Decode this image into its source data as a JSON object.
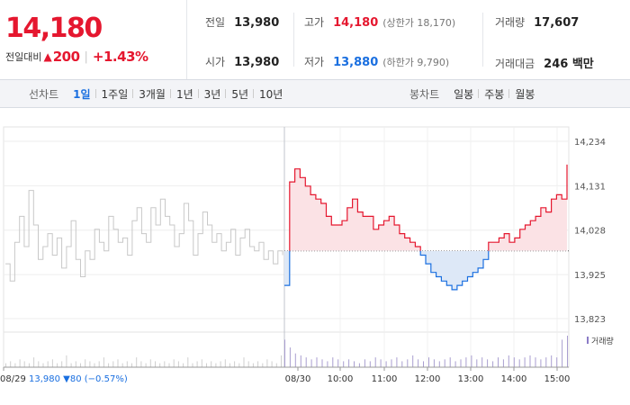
{
  "quote": {
    "price": "14,180",
    "change_label": "전일대비",
    "change_icon": "up-triangle-icon",
    "change_amount": "200",
    "change_percent": "+1.43%",
    "up_color": "#e5172f",
    "down_color": "#1a6fe0"
  },
  "stats": {
    "prev_close": {
      "label": "전일",
      "value": "13,980"
    },
    "open": {
      "label": "시가",
      "value": "13,980"
    },
    "high": {
      "label": "고가",
      "value": "14,180",
      "sub": "(상한가 18,170)"
    },
    "low": {
      "label": "저가",
      "value": "13,880",
      "sub": "(하한가 9,790)"
    },
    "volume": {
      "label": "거래량",
      "value": "17,607"
    },
    "amount": {
      "label": "거래대금",
      "value": "246 백만"
    }
  },
  "tabs": {
    "line_label": "선차트",
    "line": [
      {
        "label": "1일",
        "active": true
      },
      {
        "label": "1주일",
        "active": false
      },
      {
        "label": "3개월",
        "active": false
      },
      {
        "label": "1년",
        "active": false
      },
      {
        "label": "3년",
        "active": false
      },
      {
        "label": "5년",
        "active": false
      },
      {
        "label": "10년",
        "active": false
      }
    ],
    "candle_label": "봉차트",
    "candle": [
      {
        "label": "일봉"
      },
      {
        "label": "주봉"
      },
      {
        "label": "월봉"
      }
    ]
  },
  "chart_data": {
    "type": "line",
    "title": "",
    "ylim": [
      13800,
      14260
    ],
    "y_ticks": [
      "14,234",
      "14,131",
      "14,028",
      "13,925",
      "13,823"
    ],
    "y_tick_values": [
      14234,
      14131,
      14028,
      13925,
      13823
    ],
    "reference_line": 13980,
    "x_labels": [
      "08/29",
      "08/30",
      "10:00",
      "11:00",
      "12:00",
      "13:00",
      "14:00",
      "15:00"
    ],
    "prev_day_caption": {
      "date": "08/29",
      "close": "13,980",
      "arrow_icon": "down-triangle-icon",
      "change": "80",
      "pct": "(−0.57%)"
    },
    "volume_legend": "거래량",
    "grid": true,
    "series": [
      {
        "name": "08/29",
        "color": "#c8c8c8",
        "values": [
          13950,
          13910,
          14000,
          14060,
          13990,
          14120,
          14040,
          13960,
          13990,
          14020,
          13970,
          14010,
          13940,
          13990,
          14050,
          13960,
          13920,
          13980,
          13960,
          14030,
          14000,
          13980,
          14060,
          14030,
          14000,
          14010,
          13970,
          14050,
          14080,
          14020,
          14000,
          14080,
          14040,
          14100,
          14060,
          14040,
          13990,
          14020,
          14090,
          14050,
          13970,
          14020,
          14070,
          14040,
          14000,
          14020,
          13980,
          14000,
          14030,
          13970,
          14010,
          14030,
          13990,
          13980,
          14000,
          13960,
          13980,
          13950,
          13980,
          13970
        ]
      },
      {
        "name": "08/30",
        "color": "#e5172f",
        "values": [
          13900,
          14140,
          14170,
          14150,
          14130,
          14110,
          14100,
          14090,
          14060,
          14040,
          14040,
          14050,
          14080,
          14100,
          14070,
          14060,
          14060,
          14030,
          14040,
          14050,
          14060,
          14040,
          14020,
          14010,
          14000,
          13990,
          13970,
          13950,
          13930,
          13920,
          13910,
          13900,
          13890,
          13900,
          13910,
          13920,
          13930,
          13940,
          13960,
          14000,
          14000,
          14010,
          14020,
          14000,
          14010,
          14030,
          14040,
          14050,
          14060,
          14080,
          14070,
          14100,
          14110,
          14100,
          14180
        ]
      }
    ],
    "volume": [
      2,
      3,
      2,
      4,
      3,
      2,
      5,
      3,
      2,
      3,
      4,
      2,
      3,
      6,
      2,
      3,
      2,
      4,
      3,
      2,
      3,
      5,
      2,
      3,
      4,
      2,
      3,
      2,
      5,
      3,
      2,
      4,
      3,
      2,
      3,
      2,
      4,
      3,
      2,
      5,
      2,
      3,
      4,
      2,
      3,
      2,
      3,
      4,
      2,
      3,
      2,
      5,
      3,
      2,
      3,
      2,
      4,
      3,
      2,
      6,
      14,
      10,
      7,
      6,
      5,
      4,
      5,
      4,
      3,
      5,
      4,
      3,
      4,
      3,
      2,
      4,
      3,
      5,
      4,
      3,
      4,
      5,
      3,
      4,
      6,
      4,
      3,
      5,
      4,
      3,
      4,
      5,
      3,
      4,
      5,
      6,
      4,
      5,
      4,
      3,
      5,
      4,
      6,
      5,
      4,
      5,
      6,
      5,
      4,
      5,
      6,
      5,
      14,
      16
    ]
  }
}
